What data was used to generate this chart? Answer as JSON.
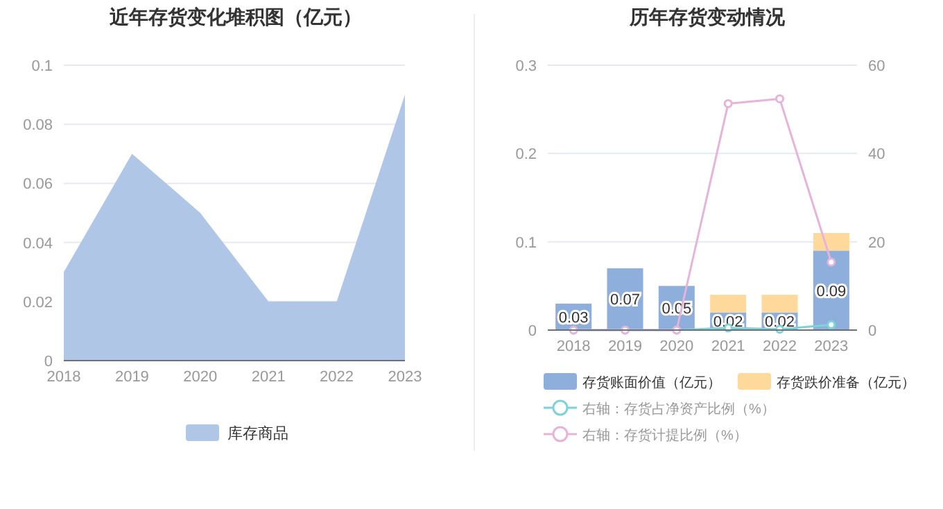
{
  "chart_data": [
    {
      "type": "area",
      "title": "近年存货变化堆积图（亿元）",
      "categories": [
        "2018",
        "2019",
        "2020",
        "2021",
        "2022",
        "2023"
      ],
      "series": [
        {
          "name": "库存商品",
          "color": "#b0c6e6",
          "values": [
            0.03,
            0.07,
            0.05,
            0.02,
            0.02,
            0.09
          ]
        }
      ],
      "ylim": [
        0,
        0.1
      ],
      "yticks": [
        0,
        0.02,
        0.04,
        0.06,
        0.08,
        0.1
      ],
      "grid": "y",
      "legend": "bottom"
    },
    {
      "type": "bar",
      "title": "历年存货变动情况",
      "categories": [
        "2018",
        "2019",
        "2020",
        "2021",
        "2022",
        "2023"
      ],
      "stacked": true,
      "series": [
        {
          "name": "存货账面价值（亿元）",
          "color": "#8eaedc",
          "values": [
            0.03,
            0.07,
            0.05,
            0.02,
            0.02,
            0.09
          ],
          "value_labels": [
            "0.03",
            "0.07",
            "0.05",
            "0.02",
            "0.02",
            "0.09"
          ]
        },
        {
          "name": "存货跌价准备（亿元）",
          "color": "#ffd99b",
          "values": [
            0,
            0,
            0,
            0.02,
            0.02,
            0.02
          ]
        },
        {
          "name": "右轴：存货占净资产比例（%）",
          "type": "line",
          "axis": "y2",
          "color": "#7dd3d8",
          "marker": "circle",
          "values": [
            0,
            0,
            0,
            0.5,
            0.2,
            1.2
          ]
        },
        {
          "name": "右轴：存货计提比例（%）",
          "type": "line",
          "axis": "y2",
          "color": "#e6b3da",
          "marker": "circle",
          "values": [
            0,
            0,
            0,
            51.3,
            52.4,
            15.4
          ]
        }
      ],
      "ylim": [
        0,
        0.3
      ],
      "yticks": [
        0,
        0.1,
        0.2,
        0.3
      ],
      "y2lim": [
        0,
        60
      ],
      "y2ticks": [
        0,
        20,
        40,
        60
      ],
      "grid": "y",
      "legend": "bottom"
    }
  ]
}
